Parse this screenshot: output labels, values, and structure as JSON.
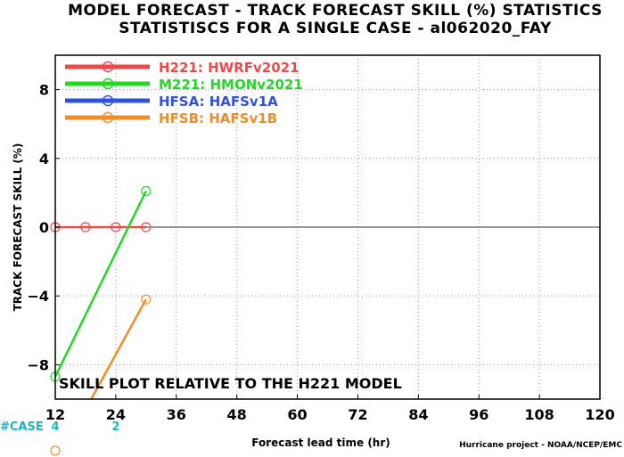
{
  "chart_data": {
    "type": "line",
    "title": "MODEL FORECAST - TRACK FORECAST SKILL (%) STATISTICS",
    "subtitle": "STATISTISCS FOR A SINGLE CASE - al062020_FAY",
    "xlabel": "Forecast lead time (hr)",
    "ylabel": "TRACK FORECAST SKILL (%)",
    "xlim": [
      12,
      120
    ],
    "ylim": [
      -10,
      10
    ],
    "xticks": [
      12,
      24,
      36,
      48,
      60,
      72,
      84,
      96,
      108,
      120
    ],
    "yticks": [
      -8,
      -4,
      0,
      4,
      8
    ],
    "grid": true,
    "legend": "top-left",
    "annotation": "SKILL PLOT RELATIVE TO THE H221 MODEL",
    "case_counts": {
      "label": "#CASE",
      "x": [
        12,
        24
      ],
      "values": [
        "4",
        "2"
      ]
    },
    "credit": "Hurricane project - NOAA/NCEP/EMC",
    "series": [
      {
        "name": "H221: HWRFv2021",
        "color": "#f04848",
        "x": [
          12,
          18,
          24,
          30
        ],
        "y": [
          0,
          0,
          0,
          0
        ]
      },
      {
        "name": "M221: HMONv2021",
        "color": "#22d822",
        "x": [
          12,
          30
        ],
        "y": [
          -8.7,
          2.1
        ]
      },
      {
        "name": "HFSA: HAFSv1A",
        "color": "#3050e0",
        "x": [],
        "y": []
      },
      {
        "name": "HFSB: HAFSv1B",
        "color": "#f08c28",
        "x": [
          12,
          30
        ],
        "y": [
          -13.8,
          -4.2
        ]
      }
    ]
  }
}
